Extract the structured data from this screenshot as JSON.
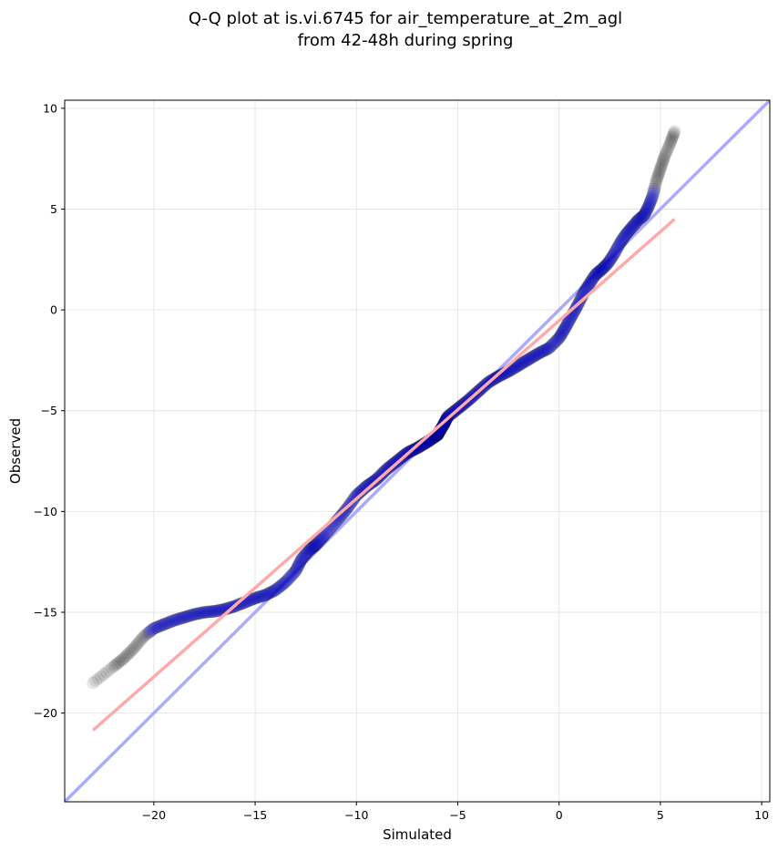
{
  "chart_data": {
    "type": "scatter",
    "title_line1": "Q-Q plot at is.vi.6745 for air_temperature_at_2m_agl",
    "title_line2": "from 42-48h during spring",
    "xlabel": "Simulated",
    "ylabel": "Observed",
    "xlim": [
      -24.4,
      10.4
    ],
    "ylim": [
      -24.4,
      10.4
    ],
    "x_ticks": [
      -20,
      -15,
      -10,
      -5,
      0,
      5,
      10
    ],
    "y_ticks": [
      -20,
      -15,
      -10,
      -5,
      0,
      5,
      10
    ],
    "x_tick_labels": [
      "−20",
      "−15",
      "−10",
      "−5",
      "0",
      "5",
      "10"
    ],
    "y_tick_labels": [
      "−20",
      "−15",
      "−10",
      "−5",
      "0",
      "5",
      "10"
    ],
    "grid": true,
    "colors": {
      "identity_line": "#aaaaff",
      "fit_line": "#ffaaaa",
      "point": "#000000",
      "center_band": "#0000cc"
    },
    "identity_line": {
      "x": [
        -24.4,
        10.4
      ],
      "y": [
        -24.4,
        10.4
      ]
    },
    "fit_line": {
      "x": [
        -23.0,
        5.7
      ],
      "y": [
        -20.85,
        4.5
      ]
    },
    "quantile_curve": [
      [
        -23.0,
        -18.5
      ],
      [
        -22.0,
        -17.7
      ],
      [
        -21.5,
        -17.3
      ],
      [
        -21.0,
        -16.8
      ],
      [
        -20.5,
        -16.2
      ],
      [
        -20.0,
        -15.8
      ],
      [
        -19.5,
        -15.6
      ],
      [
        -19.0,
        -15.4
      ],
      [
        -18.5,
        -15.25
      ],
      [
        -18.0,
        -15.1
      ],
      [
        -17.5,
        -15.0
      ],
      [
        -17.0,
        -14.95
      ],
      [
        -16.5,
        -14.85
      ],
      [
        -16.0,
        -14.7
      ],
      [
        -15.5,
        -14.5
      ],
      [
        -15.0,
        -14.3
      ],
      [
        -14.5,
        -14.15
      ],
      [
        -14.0,
        -13.9
      ],
      [
        -13.5,
        -13.5
      ],
      [
        -13.0,
        -12.95
      ],
      [
        -12.7,
        -12.35
      ],
      [
        -12.3,
        -11.9
      ],
      [
        -12.0,
        -11.65
      ],
      [
        -11.6,
        -11.2
      ],
      [
        -11.0,
        -10.5
      ],
      [
        -10.5,
        -9.9
      ],
      [
        -10.0,
        -9.2
      ],
      [
        -9.5,
        -8.75
      ],
      [
        -9.0,
        -8.4
      ],
      [
        -8.5,
        -7.9
      ],
      [
        -8.0,
        -7.5
      ],
      [
        -7.5,
        -7.1
      ],
      [
        -7.0,
        -6.85
      ],
      [
        -6.5,
        -6.55
      ],
      [
        -6.0,
        -6.2
      ],
      [
        -5.7,
        -5.7
      ],
      [
        -5.5,
        -5.3
      ],
      [
        -5.0,
        -4.9
      ],
      [
        -4.5,
        -4.5
      ],
      [
        -4.0,
        -4.05
      ],
      [
        -3.5,
        -3.6
      ],
      [
        -3.0,
        -3.3
      ],
      [
        -2.5,
        -3.05
      ],
      [
        -2.0,
        -2.75
      ],
      [
        -1.5,
        -2.45
      ],
      [
        -1.0,
        -2.15
      ],
      [
        -0.5,
        -1.9
      ],
      [
        0.0,
        -1.4
      ],
      [
        0.3,
        -0.9
      ],
      [
        0.6,
        -0.35
      ],
      [
        0.9,
        0.2
      ],
      [
        1.2,
        0.8
      ],
      [
        1.5,
        1.3
      ],
      [
        1.8,
        1.75
      ],
      [
        2.1,
        2.0
      ],
      [
        2.4,
        2.3
      ],
      [
        2.7,
        2.75
      ],
      [
        3.0,
        3.3
      ],
      [
        3.3,
        3.75
      ],
      [
        3.6,
        4.1
      ],
      [
        3.9,
        4.45
      ],
      [
        4.2,
        4.7
      ],
      [
        4.4,
        5.1
      ],
      [
        4.6,
        5.6
      ],
      [
        4.8,
        6.4
      ],
      [
        5.0,
        7.0
      ],
      [
        5.2,
        7.6
      ],
      [
        5.5,
        8.3
      ],
      [
        5.7,
        8.85
      ]
    ],
    "sample_count": 700,
    "center_band_quantiles": [
      0.05,
      0.95
    ]
  }
}
